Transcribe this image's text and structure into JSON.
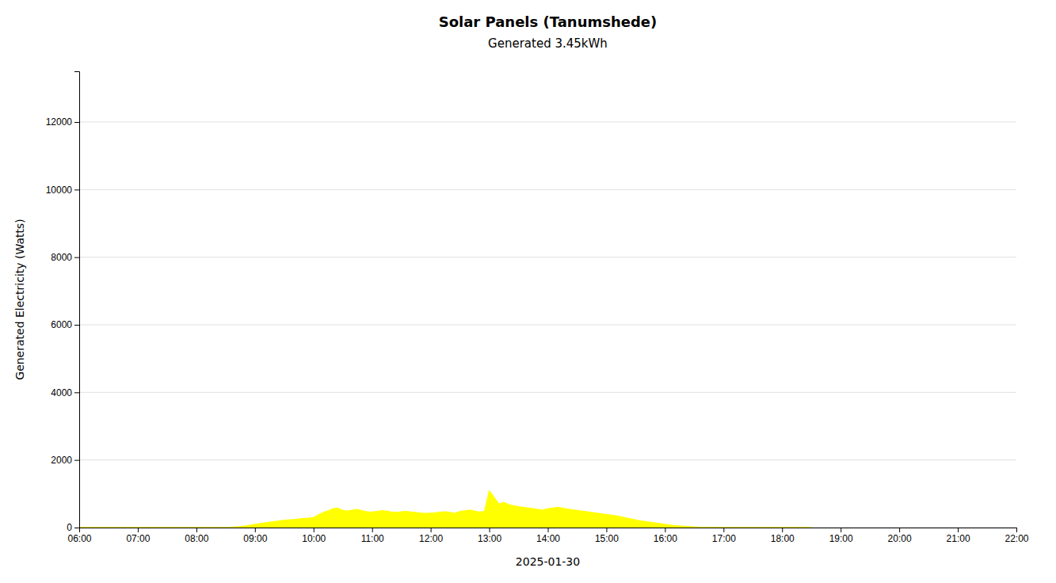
{
  "chart_data": {
    "type": "area",
    "title": "Solar Panels (Tanumshede)",
    "subtitle": "Generated 3.45kWh",
    "x_label": "2025-01-30",
    "y_label": "Generated Electricity (Watts)",
    "color": "#ffff00",
    "grid": true,
    "xlim": [
      6,
      22
    ],
    "xticks": [
      {
        "value": 6,
        "label": "06:00"
      },
      {
        "value": 7,
        "label": "07:00"
      },
      {
        "value": 8,
        "label": "08:00"
      },
      {
        "value": 9,
        "label": "09:00"
      },
      {
        "value": 10,
        "label": "10:00"
      },
      {
        "value": 11,
        "label": "11:00"
      },
      {
        "value": 12,
        "label": "12:00"
      },
      {
        "value": 13,
        "label": "13:00"
      },
      {
        "value": 14,
        "label": "14:00"
      },
      {
        "value": 15,
        "label": "15:00"
      },
      {
        "value": 16,
        "label": "16:00"
      },
      {
        "value": 17,
        "label": "17:00"
      },
      {
        "value": 18,
        "label": "18:00"
      },
      {
        "value": 19,
        "label": "19:00"
      },
      {
        "value": 20,
        "label": "20:00"
      },
      {
        "value": 21,
        "label": "21:00"
      },
      {
        "value": 22,
        "label": "22:00"
      }
    ],
    "ylim": [
      0,
      13500
    ],
    "yticks": [
      0,
      2000,
      4000,
      6000,
      8000,
      10000,
      12000
    ],
    "x": [
      6.0,
      6.083,
      6.167,
      6.25,
      6.333,
      6.417,
      6.5,
      6.583,
      6.667,
      6.75,
      6.833,
      6.917,
      7.0,
      7.083,
      7.167,
      7.25,
      7.333,
      7.417,
      7.5,
      7.583,
      7.667,
      7.75,
      7.833,
      7.917,
      8.0,
      8.083,
      8.167,
      8.25,
      8.333,
      8.417,
      8.5,
      8.583,
      8.667,
      8.75,
      8.833,
      8.917,
      9.0,
      9.083,
      9.167,
      9.25,
      9.333,
      9.417,
      9.5,
      9.583,
      9.667,
      9.75,
      9.833,
      9.917,
      10.0,
      10.083,
      10.167,
      10.25,
      10.333,
      10.417,
      10.5,
      10.583,
      10.667,
      10.75,
      10.833,
      10.917,
      11.0,
      11.083,
      11.167,
      11.25,
      11.333,
      11.417,
      11.5,
      11.583,
      11.667,
      11.75,
      11.833,
      11.917,
      12.0,
      12.083,
      12.167,
      12.25,
      12.333,
      12.417,
      12.5,
      12.583,
      12.667,
      12.75,
      12.833,
      12.917,
      13.0,
      13.083,
      13.167,
      13.25,
      13.333,
      13.417,
      13.5,
      13.583,
      13.667,
      13.75,
      13.833,
      13.917,
      14.0,
      14.083,
      14.167,
      14.25,
      14.333,
      14.417,
      14.5,
      14.583,
      14.667,
      14.75,
      14.833,
      14.917,
      15.0,
      15.083,
      15.167,
      15.25,
      15.333,
      15.417,
      15.5,
      15.583,
      15.667,
      15.75,
      15.833,
      15.917,
      16.0,
      16.083,
      16.167,
      16.25,
      16.333,
      16.417,
      16.5,
      16.583,
      16.667,
      16.75,
      16.833,
      16.917,
      17.0,
      17.083,
      17.167,
      17.25,
      17.333,
      17.417,
      17.5,
      17.583,
      17.667,
      17.75,
      17.833,
      17.917,
      18.0,
      18.083,
      18.167,
      18.25,
      18.333,
      18.417,
      18.5
    ],
    "values": [
      0,
      0,
      0,
      0,
      0,
      0,
      0,
      0,
      0,
      0,
      0,
      0,
      0,
      0,
      0,
      0,
      0,
      0,
      0,
      0,
      0,
      0,
      0,
      0,
      0,
      0,
      0,
      0,
      0,
      0,
      0,
      10,
      20,
      30,
      50,
      70,
      100,
      120,
      140,
      160,
      180,
      200,
      220,
      230,
      240,
      260,
      270,
      280,
      300,
      380,
      450,
      500,
      560,
      580,
      510,
      490,
      520,
      540,
      500,
      470,
      460,
      480,
      500,
      490,
      460,
      450,
      470,
      480,
      460,
      450,
      430,
      420,
      430,
      440,
      460,
      470,
      450,
      430,
      480,
      500,
      520,
      490,
      460,
      480,
      1100,
      900,
      700,
      750,
      680,
      650,
      620,
      600,
      580,
      560,
      540,
      520,
      560,
      580,
      600,
      580,
      550,
      530,
      510,
      490,
      470,
      450,
      430,
      410,
      390,
      370,
      350,
      320,
      290,
      260,
      230,
      200,
      180,
      160,
      140,
      120,
      100,
      80,
      60,
      50,
      40,
      30,
      20,
      15,
      10,
      5,
      3,
      2,
      0,
      0,
      0,
      0,
      0,
      0,
      0,
      0,
      0,
      0,
      0,
      0,
      0,
      0,
      0,
      0,
      0,
      0,
      0
    ]
  }
}
